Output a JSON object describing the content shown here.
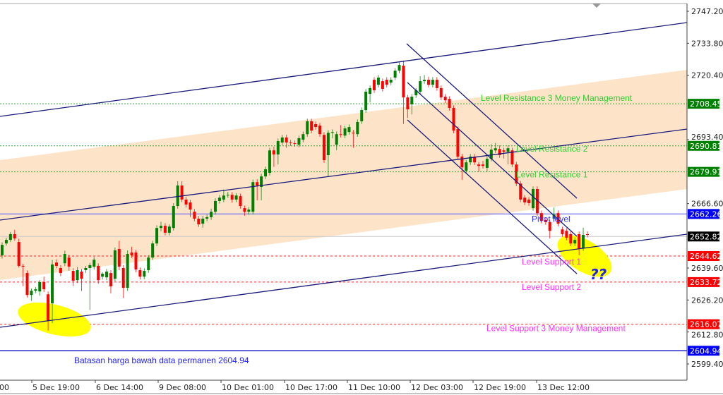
{
  "chart_data": {
    "type": "candlestick",
    "title": "",
    "y_axis": {
      "ticks": [
        2747.2,
        2733.8,
        2720.4,
        2693.4,
        2666.6,
        2639.6,
        2626.2,
        2612.8,
        2599.4
      ],
      "range": [
        2599.4,
        2747.2
      ],
      "position": "right"
    },
    "x_axis": {
      "ticks": [
        "00",
        "5 Dec 19:00",
        "6 Dec 14:00",
        "9 Dec 08:00",
        "10 Dec 01:00",
        "10 Dec 17:00",
        "11 Dec 10:00",
        "12 Dec 03:00",
        "12 Dec 19:00",
        "13 Dec 12:00"
      ]
    },
    "grid": false,
    "colors": {
      "bull": "#008000",
      "bear": "#ff0000",
      "band": "#fde3c8",
      "trendline": "#1a1a7a",
      "highlight": "#ffff00",
      "resistance": "#33cc33",
      "support": "#ff33ff",
      "pivot": "#3333ff"
    },
    "current_price": {
      "value": 2652.82,
      "label": "2652.82"
    },
    "levels": [
      {
        "price": 2708.45,
        "label": "2708.45",
        "name": "Level Resistance 3 Money Management",
        "kind": "resistance"
      },
      {
        "price": 2690.81,
        "label": "2690.81",
        "name": "Level Resistance 2",
        "kind": "resistance"
      },
      {
        "price": 2679.91,
        "label": "2679.91",
        "name": "Level Resistance 1",
        "kind": "resistance"
      },
      {
        "price": 2662.26,
        "label": "2662.26",
        "name": "Pivot level",
        "kind": "pivot"
      },
      {
        "price": 2644.62,
        "label": "2644.62",
        "name": "Level Support 1",
        "kind": "support"
      },
      {
        "price": 2633.72,
        "label": "2633.72",
        "name": "Level Support 2",
        "kind": "support"
      },
      {
        "price": 2616.07,
        "label": "2616.07",
        "name": "Level Support 3 Money Management",
        "kind": "support"
      },
      {
        "price": 2604.94,
        "label": "2604.94",
        "name": "",
        "kind": "floor"
      }
    ],
    "annotations": {
      "floor_note": "Batasan harga bawah data permanen 2604.94",
      "question": "??"
    },
    "candles": [
      [
        2644.9,
        2650.4,
        2643.6,
        2649.3
      ],
      [
        2649.9,
        2652.3,
        2649.0,
        2651.4
      ],
      [
        2651.4,
        2654.7,
        2650.5,
        2653.8
      ],
      [
        2653.8,
        2655.6,
        2651.1,
        2652.0
      ],
      [
        2650.5,
        2651.9,
        2639.8,
        2640.5
      ],
      [
        2640.5,
        2641.4,
        2632.0,
        2640.2
      ],
      [
        2637.5,
        2638.6,
        2627.3,
        2628.3
      ],
      [
        2628.3,
        2631.0,
        2625.8,
        2630.1
      ],
      [
        2630.1,
        2631.6,
        2629.0,
        2630.7
      ],
      [
        2629.8,
        2634.6,
        2628.0,
        2633.7
      ],
      [
        2633.7,
        2636.0,
        2629.5,
        2630.7
      ],
      [
        2628.6,
        2629.8,
        2613.4,
        2617.4
      ],
      [
        2624.8,
        2643.0,
        2616.5,
        2641.1
      ],
      [
        2641.9,
        2643.3,
        2639.5,
        2640.5
      ],
      [
        2639.6,
        2640.8,
        2636.2,
        2637.5
      ],
      [
        2641.6,
        2646.9,
        2640.4,
        2645.5
      ],
      [
        2644.0,
        2645.2,
        2638.5,
        2640.2
      ],
      [
        2638.4,
        2639.5,
        2632.0,
        2634.3
      ],
      [
        2634.5,
        2640.0,
        2633.3,
        2638.7
      ],
      [
        2638.1,
        2639.2,
        2630.0,
        2635.1
      ],
      [
        2638.7,
        2640.5,
        2637.5,
        2639.6
      ],
      [
        2639.6,
        2641.8,
        2622.0,
        2640.8
      ],
      [
        2640.2,
        2644.2,
        2639.0,
        2643.1
      ],
      [
        2640.5,
        2641.6,
        2633.0,
        2634.5
      ],
      [
        2636.0,
        2637.8,
        2634.8,
        2637.2
      ],
      [
        2635.7,
        2639.2,
        2634.5,
        2638.1
      ],
      [
        2637.5,
        2638.7,
        2629.0,
        2631.9
      ],
      [
        2635.1,
        2648.2,
        2634.0,
        2647.0
      ],
      [
        2647.6,
        2651.0,
        2638.7,
        2640.2
      ],
      [
        2639.6,
        2640.8,
        2627.0,
        2631.3
      ],
      [
        2631.3,
        2647.0,
        2630.0,
        2645.5
      ],
      [
        2646.1,
        2648.5,
        2643.8,
        2644.9
      ],
      [
        2646.1,
        2647.2,
        2637.8,
        2639.0
      ],
      [
        2638.7,
        2639.8,
        2634.8,
        2636.0
      ],
      [
        2636.0,
        2639.5,
        2634.9,
        2638.4
      ],
      [
        2638.7,
        2645.0,
        2637.6,
        2644.0
      ],
      [
        2644.0,
        2651.0,
        2643.0,
        2649.9
      ],
      [
        2649.9,
        2657.5,
        2648.8,
        2656.4
      ],
      [
        2656.4,
        2659.0,
        2655.0,
        2657.3
      ],
      [
        2657.3,
        2658.4,
        2653.3,
        2654.4
      ],
      [
        2654.4,
        2658.0,
        2653.3,
        2657.0
      ],
      [
        2656.4,
        2666.8,
        2655.3,
        2665.6
      ],
      [
        2665.6,
        2676.0,
        2664.5,
        2674.2
      ],
      [
        2674.2,
        2676.0,
        2667.2,
        2668.3
      ],
      [
        2668.3,
        2669.5,
        2665.0,
        2666.2
      ],
      [
        2667.1,
        2668.2,
        2661.0,
        2664.1
      ],
      [
        2663.2,
        2664.3,
        2659.2,
        2660.3
      ],
      [
        2660.3,
        2661.4,
        2656.8,
        2657.9
      ],
      [
        2658.2,
        2661.5,
        2656.5,
        2660.3
      ],
      [
        2660.3,
        2662.0,
        2659.2,
        2660.9
      ],
      [
        2660.9,
        2664.5,
        2659.8,
        2663.2
      ],
      [
        2663.2,
        2668.8,
        2662.0,
        2667.7
      ],
      [
        2667.7,
        2670.2,
        2666.6,
        2669.1
      ],
      [
        2668.3,
        2672.5,
        2667.2,
        2670.0
      ],
      [
        2670.0,
        2671.5,
        2669.0,
        2670.3
      ],
      [
        2670.3,
        2671.4,
        2667.0,
        2668.3
      ],
      [
        2668.3,
        2671.0,
        2667.2,
        2670.0
      ],
      [
        2669.7,
        2670.8,
        2664.5,
        2665.6
      ],
      [
        2664.7,
        2665.8,
        2661.5,
        2663.2
      ],
      [
        2663.2,
        2665.2,
        2662.0,
        2664.1
      ],
      [
        2663.2,
        2676.7,
        2662.1,
        2675.6
      ],
      [
        2675.6,
        2676.8,
        2668.0,
        2674.2
      ],
      [
        2673.6,
        2679.1,
        2668.0,
        2678.0
      ],
      [
        2678.0,
        2682.1,
        2676.9,
        2681.0
      ],
      [
        2679.5,
        2690.0,
        2678.4,
        2688.9
      ],
      [
        2688.9,
        2690.5,
        2682.0,
        2687.2
      ],
      [
        2687.2,
        2693.9,
        2683.0,
        2692.8
      ],
      [
        2692.2,
        2695.4,
        2691.1,
        2694.3
      ],
      [
        2694.3,
        2695.4,
        2690.0,
        2692.2
      ],
      [
        2692.2,
        2693.3,
        2690.8,
        2691.9
      ],
      [
        2691.9,
        2693.0,
        2690.5,
        2691.6
      ],
      [
        2691.3,
        2695.1,
        2690.2,
        2694.0
      ],
      [
        2693.4,
        2696.8,
        2692.3,
        2695.7
      ],
      [
        2695.7,
        2702.2,
        2694.6,
        2701.1
      ],
      [
        2701.1,
        2702.2,
        2696.1,
        2697.2
      ],
      [
        2699.9,
        2701.0,
        2697.6,
        2698.7
      ],
      [
        2699.3,
        2700.4,
        2694.6,
        2695.7
      ],
      [
        2695.4,
        2696.5,
        2683.7,
        2684.8
      ],
      [
        2686.9,
        2697.4,
        2678.0,
        2696.3
      ],
      [
        2696.3,
        2697.7,
        2694.0,
        2696.6
      ],
      [
        2691.3,
        2696.8,
        2689.0,
        2695.7
      ],
      [
        2695.7,
        2699.5,
        2694.3,
        2695.4
      ],
      [
        2695.1,
        2699.2,
        2694.0,
        2698.1
      ],
      [
        2696.6,
        2699.8,
        2695.5,
        2698.7
      ],
      [
        2696.3,
        2697.5,
        2690.0,
        2696.0
      ],
      [
        2695.7,
        2701.9,
        2694.6,
        2700.8
      ],
      [
        2701.1,
        2706.9,
        2700.0,
        2705.8
      ],
      [
        2705.8,
        2714.6,
        2704.7,
        2713.5
      ],
      [
        2712.6,
        2716.1,
        2709.0,
        2715.0
      ],
      [
        2718.5,
        2719.6,
        2713.0,
        2714.1
      ],
      [
        2716.4,
        2720.5,
        2715.3,
        2719.4
      ],
      [
        2717.9,
        2719.0,
        2713.6,
        2714.7
      ],
      [
        2718.5,
        2719.6,
        2715.3,
        2716.4
      ],
      [
        2717.3,
        2719.6,
        2716.2,
        2718.5
      ],
      [
        2719.4,
        2723.4,
        2718.3,
        2722.3
      ],
      [
        2722.3,
        2725.8,
        2721.2,
        2724.7
      ],
      [
        2724.4,
        2726.5,
        2700.0,
        2711.1
      ],
      [
        2711.1,
        2712.2,
        2702.5,
        2706.1
      ],
      [
        2708.2,
        2712.5,
        2704.0,
        2711.4
      ],
      [
        2712.0,
        2715.0,
        2710.9,
        2714.1
      ],
      [
        2713.5,
        2720.0,
        2712.4,
        2717.9
      ],
      [
        2717.9,
        2720.5,
        2716.8,
        2718.5
      ],
      [
        2718.5,
        2719.8,
        2715.3,
        2716.4
      ],
      [
        2716.4,
        2719.6,
        2715.3,
        2718.5
      ],
      [
        2718.5,
        2719.6,
        2713.9,
        2715.0
      ],
      [
        2715.0,
        2716.1,
        2710.0,
        2711.1
      ],
      [
        2711.4,
        2712.5,
        2708.8,
        2709.9
      ],
      [
        2710.5,
        2711.6,
        2705.6,
        2706.7
      ],
      [
        2706.7,
        2707.8,
        2696.1,
        2697.2
      ],
      [
        2697.8,
        2698.9,
        2685.2,
        2686.3
      ],
      [
        2686.3,
        2687.4,
        2676.5,
        2681.8
      ],
      [
        2680.4,
        2684.9,
        2679.3,
        2683.9
      ],
      [
        2683.9,
        2687.4,
        2682.8,
        2686.3
      ],
      [
        2686.3,
        2687.4,
        2682.8,
        2683.9
      ],
      [
        2683.0,
        2684.1,
        2680.0,
        2682.4
      ],
      [
        2683.0,
        2684.5,
        2681.3,
        2682.4
      ],
      [
        2681.6,
        2686.5,
        2680.0,
        2685.4
      ],
      [
        2685.4,
        2691.5,
        2684.3,
        2689.2
      ],
      [
        2688.9,
        2692.0,
        2687.8,
        2689.8
      ],
      [
        2689.5,
        2691.0,
        2685.8,
        2686.9
      ],
      [
        2688.9,
        2690.0,
        2685.5,
        2688.3
      ],
      [
        2688.3,
        2691.0,
        2683.0,
        2689.8
      ],
      [
        2688.9,
        2690.0,
        2681.9,
        2683.0
      ],
      [
        2683.0,
        2684.1,
        2673.9,
        2675.0
      ],
      [
        2675.0,
        2676.1,
        2667.2,
        2668.3
      ],
      [
        2669.1,
        2670.2,
        2666.0,
        2667.1
      ],
      [
        2668.3,
        2669.4,
        2665.7,
        2666.8
      ],
      [
        2664.7,
        2673.8,
        2663.6,
        2672.7
      ],
      [
        2672.7,
        2673.8,
        2661.5,
        2662.6
      ],
      [
        2662.6,
        2663.7,
        2658.3,
        2659.4
      ],
      [
        2659.7,
        2660.8,
        2657.7,
        2658.8
      ],
      [
        2658.8,
        2659.9,
        2652.0,
        2655.2
      ],
      [
        2660.3,
        2665.0,
        2659.2,
        2662.0
      ],
      [
        2662.6,
        2663.7,
        2657.1,
        2658.2
      ],
      [
        2655.8,
        2656.9,
        2652.7,
        2653.8
      ],
      [
        2655.2,
        2656.3,
        2651.2,
        2652.3
      ],
      [
        2653.8,
        2654.9,
        2648.8,
        2649.9
      ],
      [
        2649.9,
        2652.5,
        2648.8,
        2651.4
      ],
      [
        2653.8,
        2654.9,
        2645.0,
        2647.6
      ],
      [
        2647.9,
        2656.5,
        2646.8,
        2653.5
      ],
      [
        2653.8,
        2655.0,
        2652.4,
        2653.5
      ]
    ]
  }
}
